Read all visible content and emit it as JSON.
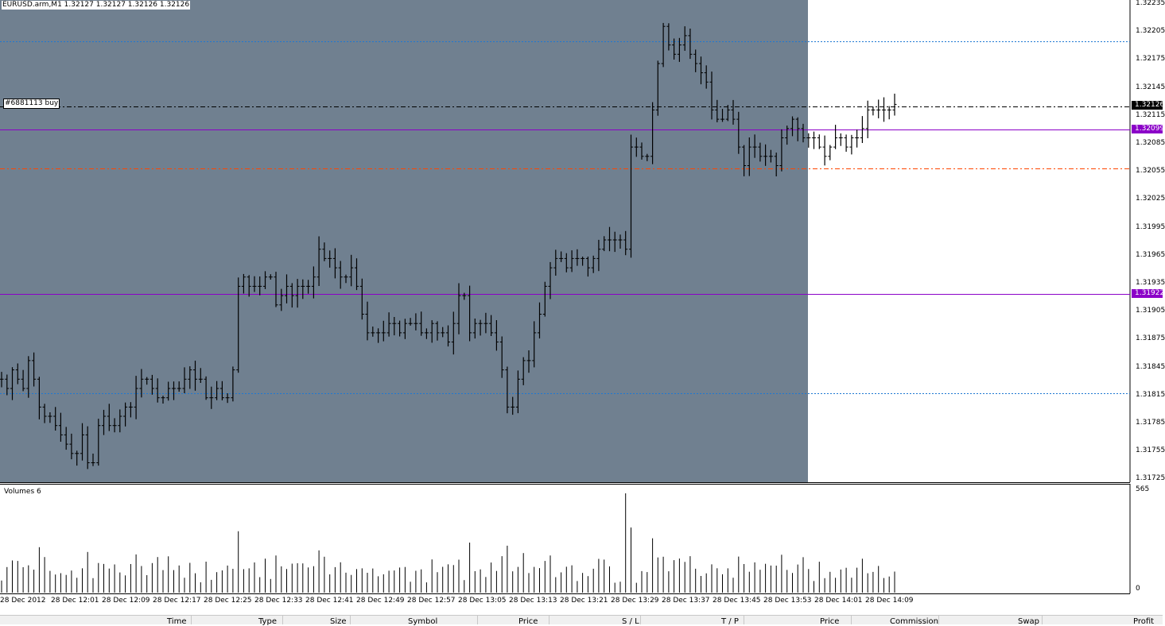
{
  "symbol_info": "EURUSD.arm,M1  1.32127 1.32127 1.32126 1.32126",
  "order_label": "#6881113 buy",
  "volumes_title": "Volumes 6",
  "price_axis": {
    "labels": [
      "1.32235",
      "1.32205",
      "1.32175",
      "1.32145",
      "1.32115",
      "1.32085",
      "1.32055",
      "1.32025",
      "1.31995",
      "1.31965",
      "1.31935",
      "1.31905",
      "1.31875",
      "1.31845",
      "1.31815",
      "1.31785",
      "1.31755",
      "1.31725"
    ],
    "current_tag": "1.32126",
    "purple_tag_1": "1.32099",
    "purple_tag_2": "1.31922"
  },
  "volume_axis": {
    "max_label": "565",
    "zero_label": "0"
  },
  "time_axis": [
    "28 Dec 2012",
    "28 Dec 12:01",
    "28 Dec 12:09",
    "28 Dec 12:17",
    "28 Dec 12:25",
    "28 Dec 12:33",
    "28 Dec 12:41",
    "28 Dec 12:49",
    "28 Dec 12:57",
    "28 Dec 13:05",
    "28 Dec 13:13",
    "28 Dec 13:21",
    "28 Dec 13:29",
    "28 Dec 13:37",
    "28 Dec 13:45",
    "28 Dec 13:53",
    "28 Dec 14:01",
    "28 Dec 14:09"
  ],
  "terminal_columns": [
    "Time",
    "Type",
    "Size",
    "Symbol",
    "Price",
    "S / L",
    "T / P",
    "Price",
    "Commission",
    "Swap",
    "Profit"
  ],
  "colors": {
    "chart_bg": "#708090",
    "purple_line": "#8B00C8",
    "blue_line": "#1E78D2",
    "orange_line": "#FF4500",
    "bar": "#000000"
  },
  "chart_data": {
    "type": "ohlc",
    "price_levels": {
      "current": 1.32126,
      "purple_1": 1.32099,
      "purple_2": 1.31922
    },
    "close_series": [
      1.3183,
      1.3182,
      1.3184,
      1.3183,
      1.3182,
      1.3185,
      1.3183,
      1.318,
      1.3179,
      1.3179,
      1.3178,
      1.3177,
      1.3176,
      1.3175,
      1.3175,
      1.3177,
      1.3174,
      1.3174,
      1.3178,
      1.3179,
      1.3178,
      1.3178,
      1.3179,
      1.318,
      1.318,
      1.3182,
      1.3183,
      1.3183,
      1.3182,
      1.3181,
      1.3181,
      1.3182,
      1.3182,
      1.3182,
      1.3183,
      1.3184,
      1.3183,
      1.3183,
      1.3181,
      1.3181,
      1.3182,
      1.3181,
      1.3181,
      1.3184,
      1.3193,
      1.3194,
      1.3193,
      1.3193,
      1.3193,
      1.3194,
      1.3194,
      1.3191,
      1.3192,
      1.3193,
      1.3192,
      1.3193,
      1.3193,
      1.3193,
      1.3194,
      1.3197,
      1.3196,
      1.3196,
      1.3195,
      1.3194,
      1.3194,
      1.3195,
      1.3193,
      1.319,
      1.3188,
      1.3188,
      1.3188,
      1.3188,
      1.3189,
      1.3189,
      1.3188,
      1.3189,
      1.3189,
      1.3189,
      1.3188,
      1.3188,
      1.3189,
      1.3188,
      1.3188,
      1.3187,
      1.3189,
      1.3192,
      1.3192,
      1.3188,
      1.3189,
      1.3189,
      1.3189,
      1.3188,
      1.3187,
      1.3184,
      1.318,
      1.318,
      1.3183,
      1.3185,
      1.3185,
      1.3188,
      1.319,
      1.3193,
      1.3195,
      1.3196,
      1.3196,
      1.3195,
      1.3196,
      1.3196,
      1.3196,
      1.3195,
      1.3196,
      1.3197,
      1.3198,
      1.3198,
      1.3198,
      1.3198,
      1.3197,
      1.3208,
      1.3208,
      1.3207,
      1.3207,
      1.3212,
      1.3217,
      1.3221,
      1.3219,
      1.3218,
      1.3219,
      1.322,
      1.3218,
      1.3217,
      1.3216,
      1.3215,
      1.3212,
      1.3211,
      1.3211,
      1.3212,
      1.3211,
      1.3208,
      1.3206,
      1.3208,
      1.3208,
      1.3207,
      1.3207,
      1.3207,
      1.3206,
      1.3209,
      1.321,
      1.3211,
      1.321,
      1.3209,
      1.3209,
      1.3209,
      1.3208,
      1.3207,
      1.3208,
      1.3209,
      1.3209,
      1.3208,
      1.3209,
      1.3209,
      1.321,
      1.3212,
      1.3212,
      1.3212,
      1.3212,
      1.3212,
      1.32126
    ],
    "volume_max": 565
  }
}
